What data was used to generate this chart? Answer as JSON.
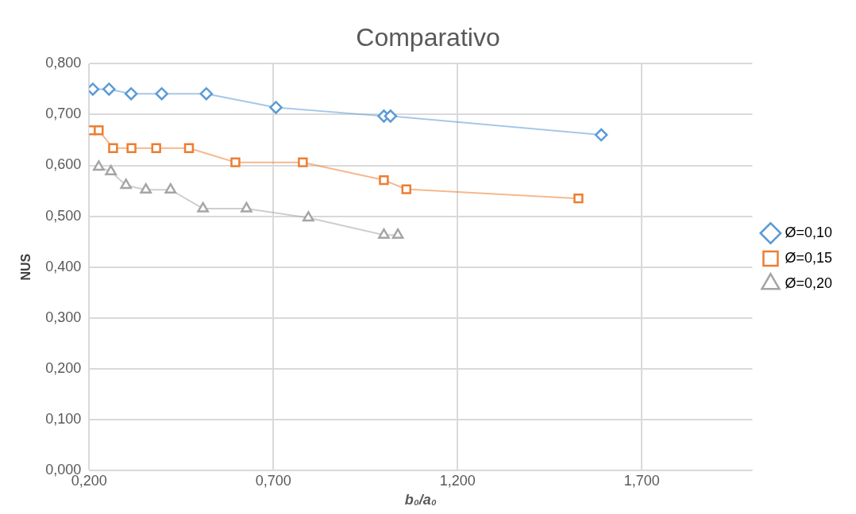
{
  "chart_data": {
    "type": "line",
    "title": "Comparativo",
    "xlabel": "b₀/a₀",
    "ylabel": "NUS",
    "xlim": [
      0.2,
      2.0
    ],
    "xticks": [
      {
        "value": 0.2,
        "label": "0,200"
      },
      {
        "value": 0.7,
        "label": "0,700"
      },
      {
        "value": 1.2,
        "label": "1,200"
      },
      {
        "value": 1.7,
        "label": "1,700"
      }
    ],
    "ylim": [
      0,
      0.8
    ],
    "yticks": [
      {
        "value": 0,
        "label": "0,000"
      },
      {
        "value": 0.1,
        "label": "0,100"
      },
      {
        "value": 0.2,
        "label": "0,200"
      },
      {
        "value": 0.3,
        "label": "0,300"
      },
      {
        "value": 0.4,
        "label": "0,400"
      },
      {
        "value": 0.5,
        "label": "0,500"
      },
      {
        "value": 0.6,
        "label": "0,600"
      },
      {
        "value": 0.7,
        "label": "0,700"
      },
      {
        "value": 0.8,
        "label": "0,800"
      }
    ],
    "grid": true,
    "legend": "right",
    "line_style": "solid",
    "series": [
      {
        "name": "Ø=0,10",
        "marker": "diamond",
        "color": "#5b9bd5",
        "x": [
          0.21,
          0.254,
          0.314,
          0.397,
          0.518,
          0.707,
          1.0,
          1.018,
          1.59
        ],
        "values": [
          0.75,
          0.75,
          0.741,
          0.741,
          0.741,
          0.714,
          0.697,
          0.697,
          0.66
        ]
      },
      {
        "name": "Ø=0,15",
        "marker": "square",
        "color": "#ed7d31",
        "x": [
          0.206,
          0.226,
          0.265,
          0.315,
          0.382,
          0.471,
          0.597,
          0.78,
          1.0,
          1.061,
          1.528
        ],
        "values": [
          0.669,
          0.669,
          0.634,
          0.634,
          0.634,
          0.634,
          0.606,
          0.606,
          0.571,
          0.553,
          0.535
        ]
      },
      {
        "name": "Ø=0,20",
        "marker": "triangle",
        "color": "#a5a5a5",
        "x": [
          0.226,
          0.259,
          0.3,
          0.354,
          0.421,
          0.509,
          0.627,
          0.795,
          1.0,
          1.038
        ],
        "values": [
          0.597,
          0.588,
          0.561,
          0.552,
          0.552,
          0.515,
          0.515,
          0.497,
          0.463,
          0.463
        ]
      }
    ]
  }
}
